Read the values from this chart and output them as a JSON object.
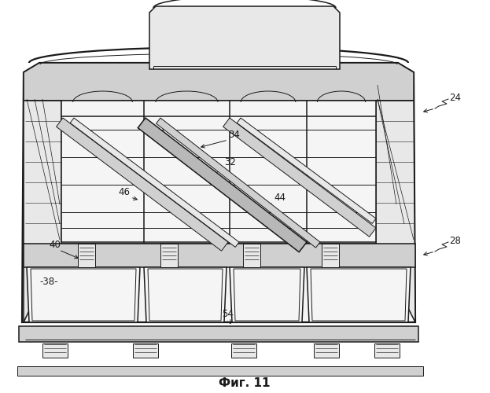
{
  "title": "Фиг. 11",
  "bg_color": "#ffffff",
  "lc": "#1a1a1a",
  "fill_white": "#ffffff",
  "fill_vlight": "#f5f5f5",
  "fill_light": "#e8e8e8",
  "fill_mid": "#d0d0d0",
  "fill_gray": "#b8b8b8",
  "fill_dark": "#909090"
}
